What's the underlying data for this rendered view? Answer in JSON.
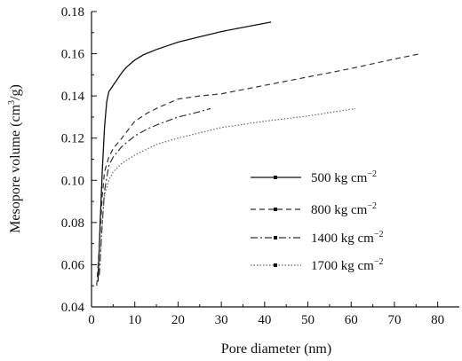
{
  "chart_data": {
    "type": "line",
    "title": "",
    "xlabel": "Pore diameter (nm)",
    "ylabel_main": "Mesopore volume (cm",
    "ylabel_sup": "3",
    "ylabel_tail": "/g)",
    "xlim": [
      0,
      85
    ],
    "ylim": [
      0.04,
      0.18
    ],
    "xticks": [
      0,
      10,
      20,
      30,
      40,
      50,
      60,
      70,
      80
    ],
    "yticks": [
      0.04,
      0.06,
      0.08,
      0.1,
      0.12,
      0.14,
      0.16,
      0.18
    ],
    "ytick_labels": [
      "0.04",
      "0.06",
      "0.08",
      "0.10",
      "0.12",
      "0.14",
      "0.16",
      "0.18"
    ],
    "grid": false,
    "legend_position": "right",
    "series": [
      {
        "name": "500 kg cm",
        "sup": "−2",
        "style": "solid",
        "points": [
          [
            1.5,
            0.052
          ],
          [
            2,
            0.08
          ],
          [
            2.5,
            0.105
          ],
          [
            3,
            0.125
          ],
          [
            3.5,
            0.137
          ],
          [
            4,
            0.142
          ],
          [
            5,
            0.145
          ],
          [
            6,
            0.148
          ],
          [
            7,
            0.151
          ],
          [
            8,
            0.1535
          ],
          [
            10,
            0.157
          ],
          [
            12,
            0.1595
          ],
          [
            15,
            0.162
          ],
          [
            20,
            0.1655
          ],
          [
            25,
            0.168
          ],
          [
            30,
            0.1705
          ],
          [
            35,
            0.1725
          ],
          [
            41.5,
            0.175
          ]
        ]
      },
      {
        "name": "800 kg cm",
        "sup": "−2",
        "style": "dashed",
        "points": [
          [
            1.2,
            0.05
          ],
          [
            2,
            0.075
          ],
          [
            2.5,
            0.093
          ],
          [
            3,
            0.104
          ],
          [
            4,
            0.111
          ],
          [
            5,
            0.115
          ],
          [
            7,
            0.12
          ],
          [
            10,
            0.128
          ],
          [
            13,
            0.132
          ],
          [
            16,
            0.135
          ],
          [
            20,
            0.1385
          ],
          [
            25,
            0.14
          ],
          [
            30,
            0.141
          ],
          [
            40,
            0.145
          ],
          [
            50,
            0.149
          ],
          [
            60,
            0.153
          ],
          [
            70,
            0.1575
          ],
          [
            76,
            0.16
          ]
        ]
      },
      {
        "name": "1400 kg cm",
        "sup": "−2",
        "style": "dashdot",
        "points": [
          [
            1.8,
            0.055
          ],
          [
            2.5,
            0.08
          ],
          [
            3,
            0.095
          ],
          [
            4,
            0.107
          ],
          [
            5,
            0.111
          ],
          [
            7,
            0.116
          ],
          [
            10,
            0.121
          ],
          [
            13,
            0.1245
          ],
          [
            16,
            0.127
          ],
          [
            20,
            0.13
          ],
          [
            24,
            0.132
          ],
          [
            27.5,
            0.134
          ]
        ]
      },
      {
        "name": "1700 kg cm",
        "sup": "−2",
        "style": "dotted",
        "points": [
          [
            2,
            0.06
          ],
          [
            2.5,
            0.08
          ],
          [
            3,
            0.093
          ],
          [
            4,
            0.1
          ],
          [
            5,
            0.104
          ],
          [
            7,
            0.108
          ],
          [
            10,
            0.112
          ],
          [
            15,
            0.117
          ],
          [
            20,
            0.12
          ],
          [
            30,
            0.125
          ],
          [
            40,
            0.128
          ],
          [
            50,
            0.1305
          ],
          [
            61,
            0.134
          ]
        ]
      }
    ]
  }
}
